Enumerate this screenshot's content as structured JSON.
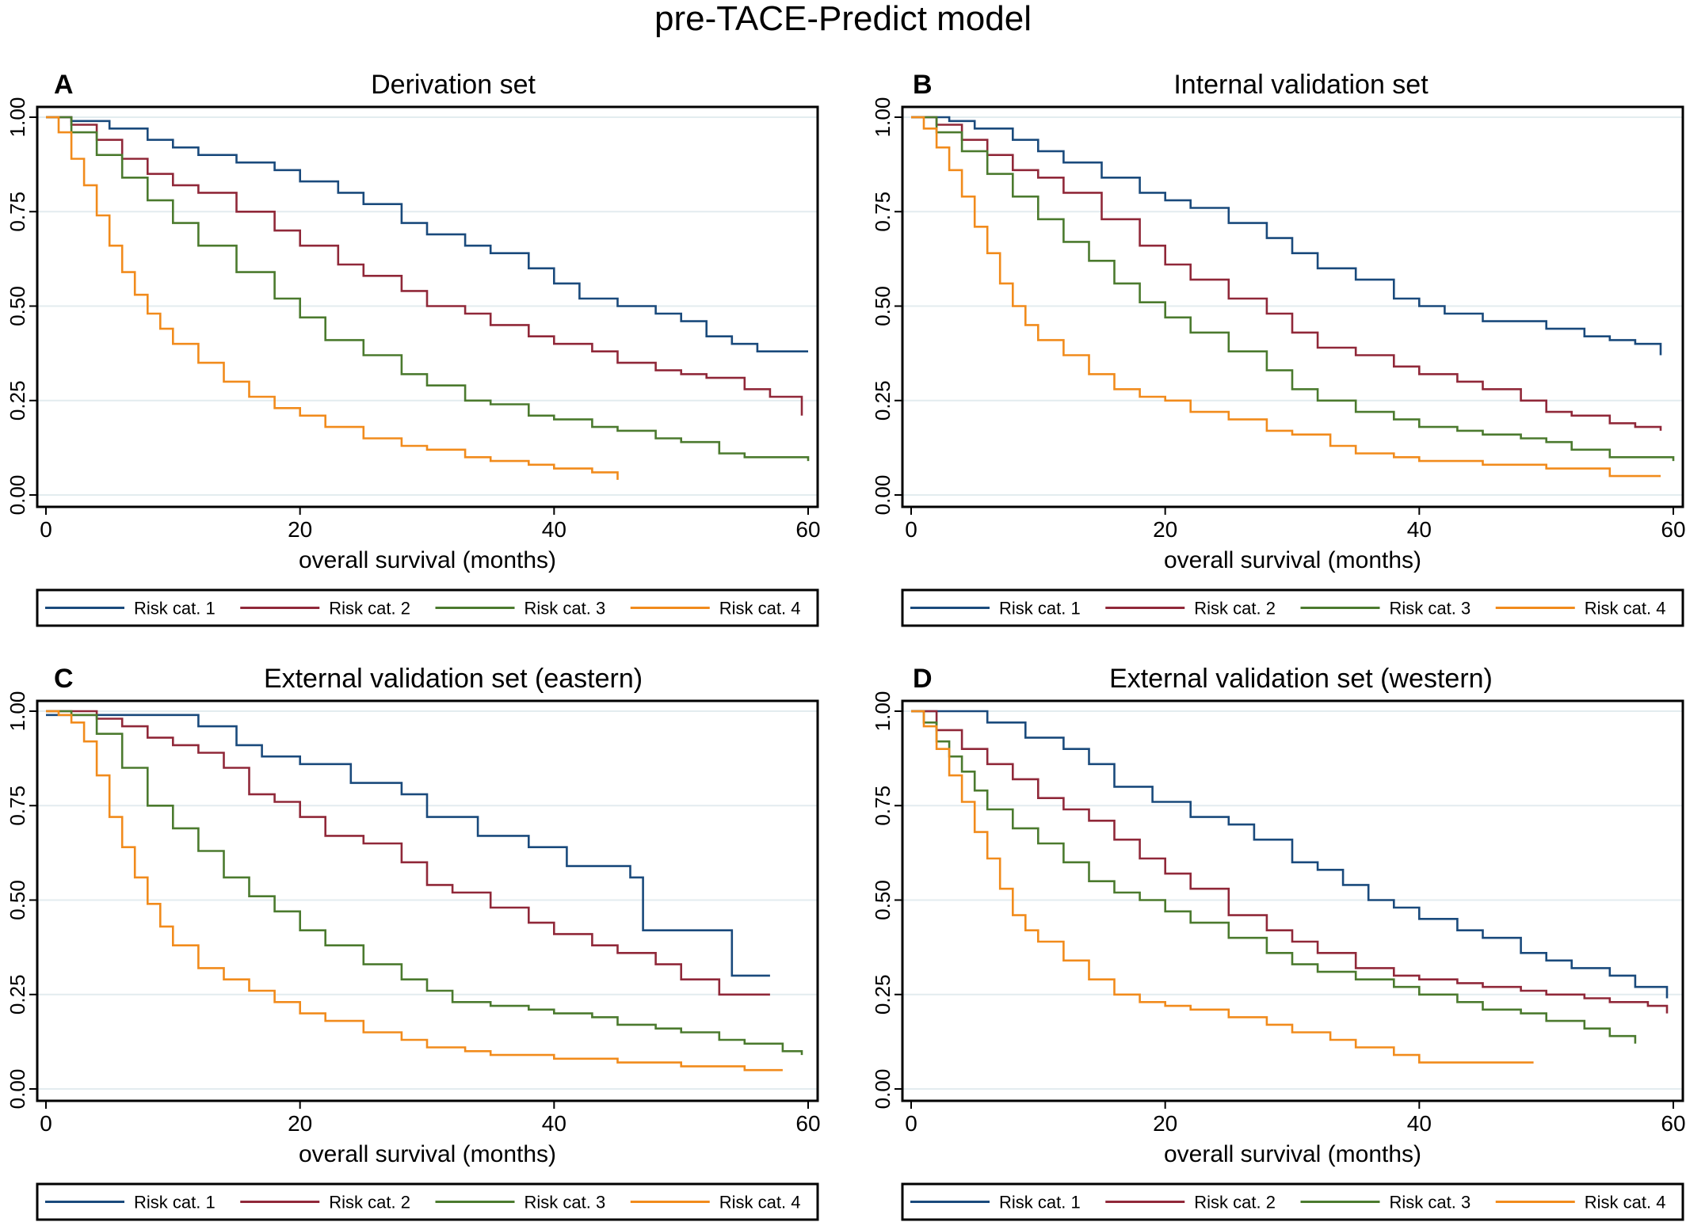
{
  "figure": {
    "title": "pre-TACE-Predict model"
  },
  "series_colors": [
    "#1a4a7c",
    "#902839",
    "#4b7a2e",
    "#f18b1c"
  ],
  "legend_labels": [
    "Risk cat. 1",
    "Risk cat. 2",
    "Risk cat. 3",
    "Risk cat. 4"
  ],
  "chart_data": [
    {
      "type": "line",
      "panel_letter": "A",
      "title": "Derivation set",
      "xlabel": "overall survival (months)",
      "ylabel": "",
      "xlim": [
        0,
        60
      ],
      "ylim": [
        0,
        1
      ],
      "xticks": [
        "0",
        "20",
        "40",
        "60"
      ],
      "yticks": [
        "0.00",
        "0.25",
        "0.50",
        "0.75",
        "1.00"
      ],
      "grid": "horizontal",
      "legend": "bottom",
      "series": [
        {
          "name": "Risk cat. 1",
          "x": [
            0,
            2,
            5,
            8,
            10,
            12,
            15,
            18,
            20,
            23,
            25,
            28,
            30,
            33,
            35,
            38,
            40,
            42,
            45,
            48,
            50,
            52,
            54,
            56,
            60
          ],
          "y": [
            1.0,
            0.99,
            0.97,
            0.94,
            0.92,
            0.9,
            0.88,
            0.86,
            0.83,
            0.8,
            0.77,
            0.72,
            0.69,
            0.66,
            0.64,
            0.6,
            0.56,
            0.52,
            0.5,
            0.48,
            0.46,
            0.42,
            0.4,
            0.38,
            0.38
          ]
        },
        {
          "name": "Risk cat. 2",
          "x": [
            0,
            2,
            4,
            6,
            8,
            10,
            12,
            15,
            18,
            20,
            23,
            25,
            28,
            30,
            33,
            35,
            38,
            40,
            43,
            45,
            48,
            50,
            52,
            55,
            57,
            59.5
          ],
          "y": [
            1.0,
            0.98,
            0.94,
            0.89,
            0.85,
            0.82,
            0.8,
            0.75,
            0.7,
            0.66,
            0.61,
            0.58,
            0.54,
            0.5,
            0.48,
            0.45,
            0.42,
            0.4,
            0.38,
            0.35,
            0.33,
            0.32,
            0.31,
            0.28,
            0.26,
            0.21
          ]
        },
        {
          "name": "Risk cat. 3",
          "x": [
            0,
            2,
            4,
            6,
            8,
            10,
            12,
            15,
            18,
            20,
            22,
            25,
            28,
            30,
            33,
            35,
            38,
            40,
            43,
            45,
            48,
            50,
            53,
            55,
            60
          ],
          "y": [
            1.0,
            0.96,
            0.9,
            0.84,
            0.78,
            0.72,
            0.66,
            0.59,
            0.52,
            0.47,
            0.41,
            0.37,
            0.32,
            0.29,
            0.25,
            0.24,
            0.21,
            0.2,
            0.18,
            0.17,
            0.15,
            0.14,
            0.11,
            0.1,
            0.09
          ]
        },
        {
          "name": "Risk cat. 4",
          "x": [
            0,
            1,
            2,
            3,
            4,
            5,
            6,
            7,
            8,
            9,
            10,
            12,
            14,
            16,
            18,
            20,
            22,
            25,
            28,
            30,
            33,
            35,
            38,
            40,
            43,
            45
          ],
          "y": [
            1.0,
            0.96,
            0.89,
            0.82,
            0.74,
            0.66,
            0.59,
            0.53,
            0.48,
            0.44,
            0.4,
            0.35,
            0.3,
            0.26,
            0.23,
            0.21,
            0.18,
            0.15,
            0.13,
            0.12,
            0.1,
            0.09,
            0.08,
            0.07,
            0.06,
            0.04
          ]
        }
      ]
    },
    {
      "type": "line",
      "panel_letter": "B",
      "title": "Internal validation set",
      "xlabel": "overall survival (months)",
      "ylabel": "",
      "xlim": [
        0,
        60
      ],
      "ylim": [
        0,
        1
      ],
      "xticks": [
        "0",
        "20",
        "40",
        "60"
      ],
      "yticks": [
        "0.00",
        "0.25",
        "0.50",
        "0.75",
        "1.00"
      ],
      "grid": "horizontal",
      "legend": "bottom",
      "series": [
        {
          "name": "Risk cat. 1",
          "x": [
            0,
            3,
            5,
            8,
            10,
            12,
            15,
            18,
            20,
            22,
            25,
            28,
            30,
            32,
            35,
            38,
            40,
            42,
            45,
            48,
            50,
            53,
            55,
            57,
            59
          ],
          "y": [
            1.0,
            0.99,
            0.97,
            0.94,
            0.91,
            0.88,
            0.84,
            0.8,
            0.78,
            0.76,
            0.72,
            0.68,
            0.64,
            0.6,
            0.57,
            0.52,
            0.5,
            0.48,
            0.46,
            0.46,
            0.44,
            0.42,
            0.41,
            0.4,
            0.37
          ]
        },
        {
          "name": "Risk cat. 2",
          "x": [
            0,
            2,
            4,
            6,
            8,
            10,
            12,
            15,
            18,
            20,
            22,
            25,
            28,
            30,
            32,
            35,
            38,
            40,
            43,
            45,
            48,
            50,
            52,
            55,
            57,
            59
          ],
          "y": [
            1.0,
            0.98,
            0.94,
            0.9,
            0.86,
            0.84,
            0.8,
            0.73,
            0.66,
            0.61,
            0.57,
            0.52,
            0.48,
            0.43,
            0.39,
            0.37,
            0.34,
            0.32,
            0.3,
            0.28,
            0.25,
            0.22,
            0.21,
            0.19,
            0.18,
            0.17
          ]
        },
        {
          "name": "Risk cat. 3",
          "x": [
            0,
            2,
            4,
            6,
            8,
            10,
            12,
            14,
            16,
            18,
            20,
            22,
            25,
            28,
            30,
            32,
            35,
            38,
            40,
            43,
            45,
            48,
            50,
            52,
            55,
            60
          ],
          "y": [
            1.0,
            0.96,
            0.91,
            0.85,
            0.79,
            0.73,
            0.67,
            0.62,
            0.56,
            0.51,
            0.47,
            0.43,
            0.38,
            0.33,
            0.28,
            0.25,
            0.22,
            0.2,
            0.18,
            0.17,
            0.16,
            0.15,
            0.14,
            0.12,
            0.1,
            0.09
          ]
        },
        {
          "name": "Risk cat. 4",
          "x": [
            0,
            1,
            2,
            3,
            4,
            5,
            6,
            7,
            8,
            9,
            10,
            12,
            14,
            16,
            18,
            20,
            22,
            25,
            28,
            30,
            33,
            35,
            38,
            40,
            45,
            50,
            55,
            59
          ],
          "y": [
            1.0,
            0.97,
            0.92,
            0.86,
            0.79,
            0.71,
            0.64,
            0.56,
            0.5,
            0.45,
            0.41,
            0.37,
            0.32,
            0.28,
            0.26,
            0.25,
            0.22,
            0.2,
            0.17,
            0.16,
            0.13,
            0.11,
            0.1,
            0.09,
            0.08,
            0.07,
            0.05,
            0.05
          ]
        }
      ]
    },
    {
      "type": "line",
      "panel_letter": "C",
      "title": "External validation set (eastern)",
      "xlabel": "overall survival (months)",
      "ylabel": "",
      "xlim": [
        0,
        60
      ],
      "ylim": [
        0,
        1
      ],
      "xticks": [
        "0",
        "20",
        "40",
        "60"
      ],
      "yticks": [
        "0.00",
        "0.25",
        "0.50",
        "0.75",
        "1.00"
      ],
      "grid": "horizontal",
      "legend": "bottom",
      "series": [
        {
          "name": "Risk cat. 1",
          "x": [
            0,
            2,
            4,
            8,
            11,
            12,
            15,
            17,
            20,
            24,
            28,
            30,
            34,
            38,
            41,
            46,
            47,
            52,
            54,
            57
          ],
          "y": [
            0.99,
            0.99,
            0.99,
            0.99,
            0.99,
            0.96,
            0.91,
            0.88,
            0.86,
            0.81,
            0.78,
            0.72,
            0.67,
            0.64,
            0.59,
            0.56,
            0.42,
            0.42,
            0.3,
            0.3
          ]
        },
        {
          "name": "Risk cat. 2",
          "x": [
            0,
            2,
            4,
            6,
            8,
            10,
            12,
            14,
            16,
            18,
            20,
            22,
            25,
            28,
            30,
            32,
            35,
            38,
            40,
            43,
            45,
            48,
            50,
            53,
            55,
            57
          ],
          "y": [
            1.0,
            1.0,
            0.98,
            0.96,
            0.93,
            0.91,
            0.89,
            0.85,
            0.78,
            0.76,
            0.72,
            0.67,
            0.65,
            0.6,
            0.54,
            0.52,
            0.48,
            0.44,
            0.41,
            0.38,
            0.36,
            0.33,
            0.29,
            0.25,
            0.25,
            0.25
          ]
        },
        {
          "name": "Risk cat. 3",
          "x": [
            0,
            2,
            4,
            6,
            8,
            10,
            12,
            14,
            16,
            18,
            20,
            22,
            25,
            28,
            30,
            32,
            35,
            38,
            40,
            43,
            45,
            48,
            50,
            53,
            55,
            58,
            59.5
          ],
          "y": [
            1.0,
            0.99,
            0.94,
            0.85,
            0.75,
            0.69,
            0.63,
            0.56,
            0.51,
            0.47,
            0.42,
            0.38,
            0.33,
            0.29,
            0.26,
            0.23,
            0.22,
            0.21,
            0.2,
            0.19,
            0.17,
            0.16,
            0.15,
            0.13,
            0.12,
            0.1,
            0.09
          ]
        },
        {
          "name": "Risk cat. 4",
          "x": [
            0,
            1,
            2,
            3,
            4,
            5,
            6,
            7,
            8,
            9,
            10,
            12,
            14,
            16,
            18,
            20,
            22,
            25,
            28,
            30,
            33,
            35,
            38,
            40,
            45,
            50,
            55,
            58
          ],
          "y": [
            1.0,
            0.99,
            0.97,
            0.92,
            0.83,
            0.72,
            0.64,
            0.56,
            0.49,
            0.43,
            0.38,
            0.32,
            0.29,
            0.26,
            0.23,
            0.2,
            0.18,
            0.15,
            0.13,
            0.11,
            0.1,
            0.09,
            0.09,
            0.08,
            0.07,
            0.06,
            0.05,
            0.05
          ]
        }
      ]
    },
    {
      "type": "line",
      "panel_letter": "D",
      "title": "External validation set (western)",
      "xlabel": "overall survival (months)",
      "ylabel": "",
      "xlim": [
        0,
        60
      ],
      "ylim": [
        0,
        1
      ],
      "xticks": [
        "0",
        "20",
        "40",
        "60"
      ],
      "yticks": [
        "0.00",
        "0.25",
        "0.50",
        "0.75",
        "1.00"
      ],
      "grid": "horizontal",
      "legend": "bottom",
      "series": [
        {
          "name": "Risk cat. 1",
          "x": [
            0,
            3,
            6,
            9,
            12,
            14,
            16,
            19,
            22,
            25,
            27,
            30,
            32,
            34,
            36,
            38,
            40,
            43,
            45,
            48,
            50,
            52,
            55,
            57,
            59.5
          ],
          "y": [
            1.0,
            1.0,
            0.97,
            0.93,
            0.9,
            0.86,
            0.8,
            0.76,
            0.72,
            0.7,
            0.66,
            0.6,
            0.58,
            0.54,
            0.5,
            0.48,
            0.45,
            0.42,
            0.4,
            0.36,
            0.34,
            0.32,
            0.3,
            0.27,
            0.24
          ]
        },
        {
          "name": "Risk cat. 2",
          "x": [
            0,
            2,
            4,
            6,
            8,
            10,
            12,
            14,
            16,
            18,
            20,
            22,
            25,
            28,
            30,
            32,
            35,
            38,
            40,
            43,
            45,
            48,
            50,
            53,
            55,
            58,
            59.5
          ],
          "y": [
            1.0,
            0.95,
            0.9,
            0.86,
            0.82,
            0.77,
            0.74,
            0.71,
            0.66,
            0.61,
            0.57,
            0.53,
            0.46,
            0.42,
            0.39,
            0.36,
            0.32,
            0.3,
            0.29,
            0.28,
            0.27,
            0.26,
            0.25,
            0.24,
            0.23,
            0.22,
            0.2
          ]
        },
        {
          "name": "Risk cat. 3",
          "x": [
            0,
            1,
            2,
            3,
            4,
            5,
            6,
            8,
            10,
            12,
            14,
            16,
            18,
            20,
            22,
            25,
            28,
            30,
            32,
            35,
            38,
            40,
            43,
            45,
            48,
            50,
            53,
            55,
            57
          ],
          "y": [
            1.0,
            0.97,
            0.92,
            0.88,
            0.84,
            0.79,
            0.74,
            0.69,
            0.65,
            0.6,
            0.55,
            0.52,
            0.5,
            0.47,
            0.44,
            0.4,
            0.36,
            0.33,
            0.31,
            0.29,
            0.27,
            0.25,
            0.23,
            0.21,
            0.2,
            0.18,
            0.16,
            0.14,
            0.12
          ]
        },
        {
          "name": "Risk cat. 4",
          "x": [
            0,
            1,
            2,
            3,
            4,
            5,
            6,
            7,
            8,
            9,
            10,
            12,
            14,
            16,
            18,
            20,
            22,
            25,
            28,
            30,
            33,
            35,
            38,
            40,
            45,
            49
          ],
          "y": [
            1.0,
            0.96,
            0.9,
            0.83,
            0.76,
            0.68,
            0.61,
            0.53,
            0.46,
            0.42,
            0.39,
            0.34,
            0.29,
            0.25,
            0.23,
            0.22,
            0.21,
            0.19,
            0.17,
            0.15,
            0.13,
            0.11,
            0.09,
            0.07,
            0.07,
            0.07
          ]
        }
      ]
    }
  ]
}
